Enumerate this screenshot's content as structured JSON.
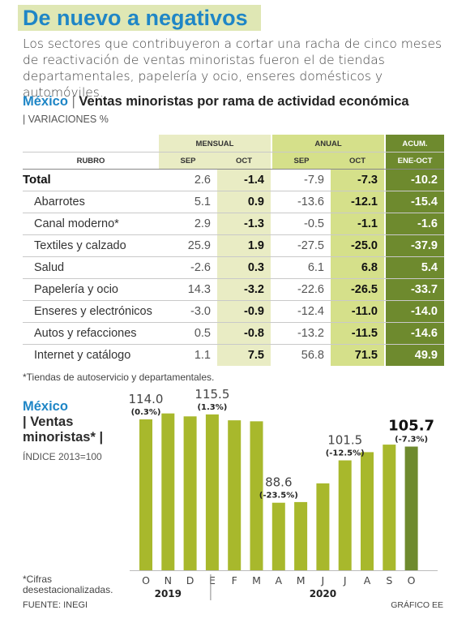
{
  "header": {
    "title": "De nuevo a negativos",
    "intro": "Los sectores que contribuyeron a cortar una racha de cinco meses de reactivación de ventas minoristas fueron el de tiendas departamentales, papelería y ocio, enseres domésticos y automóviles."
  },
  "table": {
    "country": "México",
    "separator": "|",
    "title": "Ventas minoristas por rama de actividad económica",
    "units": "| VARIACIONES %",
    "group_mensual": "MENSUAL",
    "group_anual": "ANUAL",
    "group_acum": "ACUM.",
    "col_rubro": "RUBRO",
    "col_sep": "SEP",
    "col_oct": "OCT",
    "col_acum": "ENE-OCT",
    "rows": [
      {
        "label": "Total",
        "m_sep": "2.6",
        "m_oct": "-1.4",
        "a_sep": "-7.9",
        "a_oct": "-7.3",
        "acum": "-10.2"
      },
      {
        "label": "Abarrotes",
        "m_sep": "5.1",
        "m_oct": "0.9",
        "a_sep": "-13.6",
        "a_oct": "-12.1",
        "acum": "-15.4"
      },
      {
        "label": "Canal moderno*",
        "m_sep": "2.9",
        "m_oct": "-1.3",
        "a_sep": "-0.5",
        "a_oct": "-1.1",
        "acum": "-1.6"
      },
      {
        "label": "Textiles y calzado",
        "m_sep": "25.9",
        "m_oct": "1.9",
        "a_sep": "-27.5",
        "a_oct": "-25.0",
        "acum": "-37.9"
      },
      {
        "label": "Salud",
        "m_sep": "-2.6",
        "m_oct": "0.3",
        "a_sep": "6.1",
        "a_oct": "6.8",
        "acum": "5.4"
      },
      {
        "label": "Papelería y ocio",
        "m_sep": "14.3",
        "m_oct": "-3.2",
        "a_sep": "-22.6",
        "a_oct": "-26.5",
        "acum": "-33.7"
      },
      {
        "label": "Enseres y electrónicos",
        "m_sep": "-3.0",
        "m_oct": "-0.9",
        "a_sep": "-12.4",
        "a_oct": "-11.0",
        "acum": "-14.0"
      },
      {
        "label": "Autos y refacciones",
        "m_sep": "0.5",
        "m_oct": "-0.8",
        "a_sep": "-13.2",
        "a_oct": "-11.5",
        "acum": "-14.6"
      },
      {
        "label": "Internet y catálogo",
        "m_sep": "1.1",
        "m_oct": "7.5",
        "a_sep": "56.8",
        "a_oct": "71.5",
        "acum": "49.9"
      }
    ],
    "footnote": "*Tiendas de autoservicio y departamentales."
  },
  "chart_section": {
    "country": "México",
    "title": "| Ventas minoristas* |",
    "units": "ÍNDICE 2013=100",
    "footnote": "*Cifras desestacionalizadas.",
    "source": "FUENTE: INEGI",
    "credit": "GRÁFICO EE"
  },
  "chart_data": {
    "type": "bar",
    "title": "Ventas minoristas*",
    "ylabel": "ÍNDICE 2013=100",
    "categories": [
      "O",
      "N",
      "D",
      "E",
      "F",
      "M",
      "A",
      "M",
      "J",
      "J",
      "A",
      "S",
      "O"
    ],
    "year_labels": [
      "2019",
      "2020"
    ],
    "values": [
      114.0,
      115.8,
      114.9,
      115.5,
      113.7,
      113.4,
      88.6,
      88.8,
      94.5,
      101.5,
      104.0,
      106.3,
      105.7
    ],
    "ylim": [
      70,
      120
    ],
    "annotations": [
      {
        "index": 0,
        "value": "114.0",
        "change": "(0.3%)"
      },
      {
        "index": 3,
        "value": "115.5",
        "change": "(1.3%)"
      },
      {
        "index": 6,
        "value": "88.6",
        "change": "(-23.5%)"
      },
      {
        "index": 9,
        "value": "101.5",
        "change": "(-12.5%)"
      },
      {
        "index": 12,
        "value": "105.7",
        "change": "(-7.3%)"
      }
    ],
    "colors": {
      "bar": "#a8b82c",
      "last_bar": "#6e8a2e",
      "title_bg": "#dfe7b4",
      "accent": "#1f86c6"
    }
  }
}
